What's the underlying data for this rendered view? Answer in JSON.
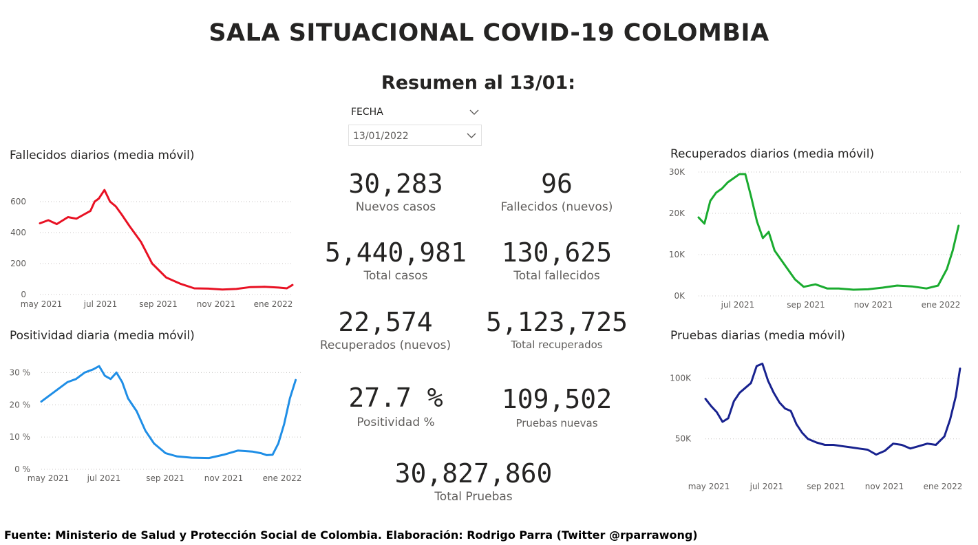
{
  "header": {
    "title": "SALA SITUACIONAL COVID-19 COLOMBIA",
    "subtitle": "Resumen al 13/01:"
  },
  "slicer": {
    "label": "FECHA",
    "value": "13/01/2022"
  },
  "kpis": {
    "nuevos_casos": {
      "value": "30,283",
      "label": "Nuevos casos"
    },
    "fallecidos_nuevos": {
      "value": "96",
      "label": "Fallecidos (nuevos)"
    },
    "total_casos": {
      "value": "5,440,981",
      "label": "Total casos"
    },
    "total_fallecidos": {
      "value": "130,625",
      "label": "Total fallecidos"
    },
    "recuperados_nuevos": {
      "value": "22,574",
      "label": "Recuperados (nuevos)"
    },
    "total_recuperados": {
      "value": "5,123,725",
      "label": "Total recuperados"
    },
    "positividad": {
      "value": "27.7 %",
      "label": "Positividad %"
    },
    "pruebas_nuevas": {
      "value": "109,502",
      "label": "Pruebas nuevas"
    },
    "total_pruebas": {
      "value": "30,827,860",
      "label": "Total Pruebas"
    }
  },
  "footer": {
    "text": "Fuente: Ministerio de Salud y Protección Social de Colombia. Elaboración: Rodrigo Parra (Twitter @rparrawong)"
  },
  "chart_data": [
    {
      "id": "fallecidos",
      "type": "line",
      "title": "Fallecidos diarios (media móvil)",
      "color": "#e81123",
      "x_ticks": [
        "may 2021",
        "jul 2021",
        "sep 2021",
        "nov 2021",
        "ene 2022"
      ],
      "y_ticks": [
        "0",
        "200",
        "400",
        "600"
      ],
      "ylim": [
        0,
        680
      ],
      "xlim": [
        0,
        9.0
      ],
      "grid": true,
      "x": [
        0,
        0.3,
        0.6,
        1.0,
        1.3,
        1.6,
        1.8,
        1.95,
        2.1,
        2.3,
        2.5,
        2.7,
        2.9,
        3.2,
        3.6,
        4.0,
        4.5,
        5.0,
        5.5,
        6.0,
        6.5,
        7.0,
        7.5,
        8.0,
        8.5,
        8.8,
        9.0
      ],
      "y": [
        460,
        480,
        455,
        500,
        490,
        520,
        540,
        600,
        620,
        675,
        600,
        570,
        520,
        440,
        340,
        200,
        110,
        70,
        40,
        38,
        32,
        36,
        48,
        50,
        45,
        40,
        62
      ]
    },
    {
      "id": "positividad",
      "type": "line",
      "title": "Positividad diaria (media móvil)",
      "color": "#1f8ee6",
      "x_ticks": [
        "may 2021",
        "jul 2021",
        "sep 2021",
        "nov 2021",
        "ene 2022"
      ],
      "y_ticks": [
        "0 %",
        "10 %",
        "20 %",
        "30 %"
      ],
      "ylim": [
        0,
        32
      ],
      "xlim": [
        0,
        9.0
      ],
      "grid": true,
      "x": [
        0,
        0.3,
        0.6,
        0.9,
        1.2,
        1.5,
        1.8,
        2.0,
        2.2,
        2.4,
        2.6,
        2.8,
        3.0,
        3.3,
        3.6,
        3.9,
        4.3,
        4.7,
        5.2,
        5.8,
        6.3,
        6.8,
        7.3,
        7.6,
        7.8,
        8.0,
        8.2,
        8.4,
        8.6,
        8.8
      ],
      "y": [
        21,
        23,
        25,
        27,
        28,
        30,
        31,
        32,
        29,
        28,
        30,
        27,
        22,
        18,
        12,
        8,
        5,
        4,
        3.6,
        3.5,
        4.5,
        5.8,
        5.5,
        5.0,
        4.4,
        4.5,
        8,
        14,
        22,
        27.7
      ]
    },
    {
      "id": "recuperados",
      "type": "line",
      "title": "Recuperados diarios (media móvil)",
      "color": "#1aab2f",
      "x_ticks": [
        "jul 2021",
        "sep 2021",
        "nov 2021",
        "ene 2022"
      ],
      "y_ticks": [
        "0K",
        "10K",
        "20K",
        "30K"
      ],
      "ylim": [
        0,
        30000
      ],
      "xlim": [
        0,
        9.0
      ],
      "grid": true,
      "x": [
        0,
        0.2,
        0.4,
        0.6,
        0.8,
        1.0,
        1.2,
        1.4,
        1.6,
        1.8,
        2.0,
        2.2,
        2.4,
        2.6,
        2.8,
        3.0,
        3.3,
        3.6,
        4.0,
        4.4,
        4.8,
        5.3,
        5.8,
        6.3,
        6.8,
        7.3,
        7.8,
        8.2,
        8.5,
        8.7,
        8.9
      ],
      "y": [
        19000,
        17500,
        23000,
        25000,
        26000,
        27500,
        28500,
        29500,
        29500,
        24000,
        18000,
        14000,
        15500,
        11000,
        9000,
        7000,
        4000,
        2200,
        2800,
        1800,
        1800,
        1500,
        1600,
        2000,
        2500,
        2300,
        1800,
        2500,
        6500,
        11000,
        17000
      ]
    },
    {
      "id": "pruebas",
      "type": "line",
      "title": "Pruebas diarias (media móvil)",
      "color": "#18228f",
      "x_ticks": [
        "may 2021",
        "jul 2021",
        "sep 2021",
        "nov 2021",
        "ene 2022"
      ],
      "y_ticks": [
        "50K",
        "100K"
      ],
      "ylim": [
        22000,
        114000
      ],
      "xlim": [
        0,
        9.0
      ],
      "grid": true,
      "x": [
        0,
        0.2,
        0.4,
        0.6,
        0.8,
        1.0,
        1.2,
        1.4,
        1.6,
        1.8,
        2.0,
        2.2,
        2.4,
        2.6,
        2.8,
        3.0,
        3.2,
        3.4,
        3.6,
        3.9,
        4.2,
        4.5,
        4.8,
        5.1,
        5.4,
        5.7,
        6.0,
        6.3,
        6.6,
        6.9,
        7.2,
        7.5,
        7.8,
        8.1,
        8.4,
        8.6,
        8.8,
        8.95
      ],
      "y": [
        83000,
        77000,
        72000,
        64000,
        67000,
        81000,
        88000,
        92000,
        96000,
        110000,
        112000,
        98000,
        88000,
        80000,
        75000,
        73000,
        62000,
        55000,
        50000,
        47000,
        45000,
        45000,
        44000,
        43000,
        42000,
        41000,
        37000,
        40000,
        46000,
        45000,
        42000,
        44000,
        46000,
        45000,
        52000,
        66000,
        85000,
        108000
      ]
    }
  ]
}
